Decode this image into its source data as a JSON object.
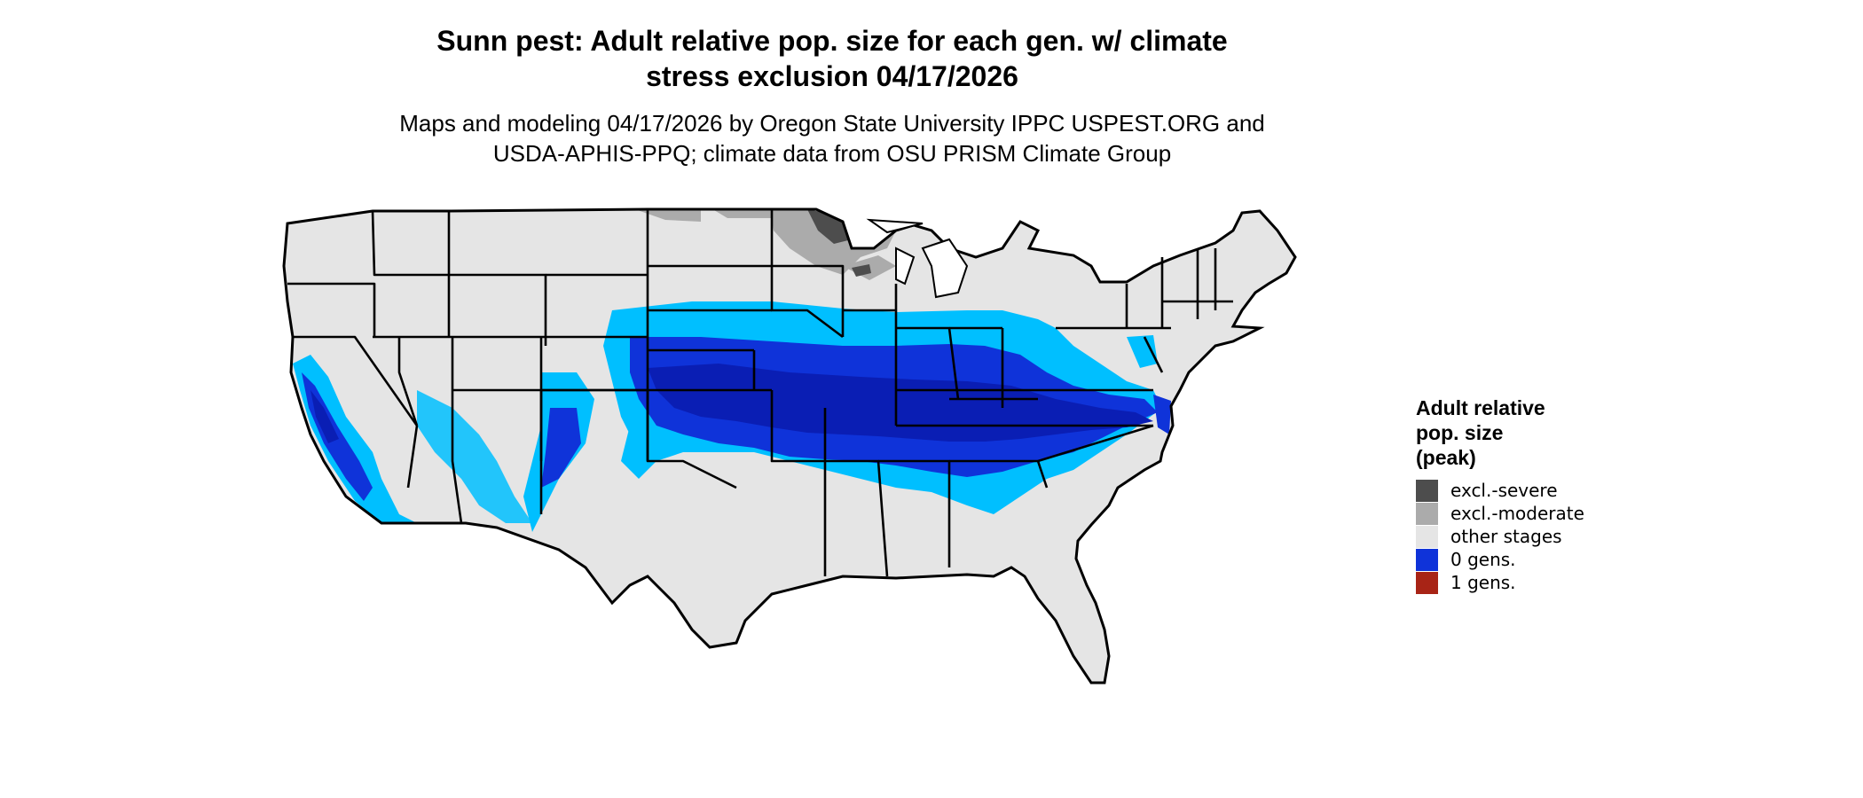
{
  "title": {
    "line1": "Sunn pest: Adult relative pop. size for each gen. w/ climate",
    "line2": "stress exclusion 04/17/2026"
  },
  "subtitle": {
    "line1": "Maps and modeling 04/17/2026 by Oregon State University IPPC USPEST.ORG and",
    "line2": "USDA-APHIS-PPQ; climate data from OSU PRISM Climate Group"
  },
  "legend": {
    "title_line1": "Adult relative",
    "title_line2": "pop. size",
    "title_line3": "(peak)",
    "items": [
      {
        "label": "excl.-severe",
        "color": "#4d4d4d"
      },
      {
        "label": "excl.-moderate",
        "color": "#ababab"
      },
      {
        "label": "other stages",
        "color": "#e5e5e5"
      },
      {
        "label": "0 gens.",
        "color": "#0f33d9"
      },
      {
        "label": "1 gens.",
        "color": "#a82416"
      }
    ]
  },
  "colors": {
    "land": "#e5e5e5",
    "light_blue": "#00bfff",
    "mid_blue": "#0f33d9",
    "dark_blue": "#0a1eb4",
    "excl_moderate": "#ababab",
    "excl_severe": "#4d4d4d",
    "border": "#000000"
  }
}
